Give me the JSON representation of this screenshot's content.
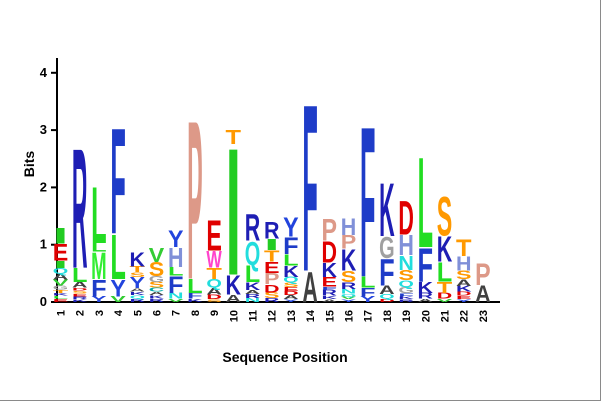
{
  "chart_data": {
    "type": "sequence-logo",
    "title": "",
    "xlabel": "Sequence Position",
    "ylabel": "Bits",
    "ylim": [
      0,
      4.3
    ],
    "yticks": [
      "0",
      "1",
      "2",
      "3",
      "4"
    ],
    "ytick_values": [
      0,
      1,
      2,
      3,
      4
    ],
    "positions": [
      "1",
      "2",
      "3",
      "4",
      "5",
      "6",
      "7",
      "8",
      "9",
      "10",
      "11",
      "12",
      "13",
      "14",
      "15",
      "16",
      "17",
      "18",
      "19",
      "20",
      "21",
      "22",
      "23"
    ],
    "colors": {
      "A": "#404040",
      "C": "#00aaaa",
      "D": "#e00000",
      "E": "#e00000",
      "F": "#1e3cc8",
      "G": "#a0a0a0",
      "H": "#8090d8",
      "I": "#22cc22",
      "K": "#1e1eb4",
      "L": "#22dd22",
      "M": "#33ee33",
      "N": "#22dddd",
      "P": "#dd9988",
      "Q": "#22dddd",
      "R": "#1e1eb4",
      "S": "#ff9900",
      "T": "#ff9900",
      "V": "#33cc33",
      "W": "#ff44cc",
      "Y": "#2244dd"
    },
    "columns": [
      {
        "position": "1",
        "letters": [
          [
            "E",
            0.06
          ],
          [
            "L",
            0.05
          ],
          [
            "K",
            0.05
          ],
          [
            "T",
            0.06
          ],
          [
            "G",
            0.07
          ],
          [
            "V",
            0.1
          ],
          [
            "A",
            0.1
          ],
          [
            "Q",
            0.1
          ],
          [
            "I",
            0.13
          ],
          [
            "E",
            0.3
          ],
          [
            "I",
            0.28
          ]
        ]
      },
      {
        "position": "2",
        "letters": [
          [
            "K",
            0.05
          ],
          [
            "R",
            0.05
          ],
          [
            "E",
            0.05
          ],
          [
            "S",
            0.05
          ],
          [
            "D",
            0.05
          ],
          [
            "A",
            0.1
          ],
          [
            "L",
            0.25
          ],
          [
            "R",
            2.15
          ]
        ]
      },
      {
        "position": "3",
        "letters": [
          [
            "Y",
            0.1
          ],
          [
            "F",
            0.3
          ],
          [
            "M",
            0.48
          ],
          [
            "L",
            0.15
          ],
          [
            "L",
            1.02
          ]
        ]
      },
      {
        "position": "4",
        "letters": [
          [
            "V",
            0.1
          ],
          [
            "Y",
            0.3
          ],
          [
            "L",
            0.8
          ],
          [
            "F",
            1.9
          ]
        ]
      },
      {
        "position": "5",
        "letters": [
          [
            "R",
            0.06
          ],
          [
            "Q",
            0.06
          ],
          [
            "K",
            0.06
          ],
          [
            "A",
            0.06
          ],
          [
            "Y",
            0.2
          ],
          [
            "S",
            0.08
          ],
          [
            "T",
            0.1
          ],
          [
            "K",
            0.25
          ]
        ]
      },
      {
        "position": "6",
        "letters": [
          [
            "R",
            0.06
          ],
          [
            "K",
            0.06
          ],
          [
            "A",
            0.06
          ],
          [
            "C",
            0.07
          ],
          [
            "S",
            0.1
          ],
          [
            "G",
            0.1
          ],
          [
            "S",
            0.25
          ],
          [
            "V",
            0.25
          ]
        ]
      },
      {
        "position": "7",
        "letters": [
          [
            "V",
            0.06
          ],
          [
            "N",
            0.1
          ],
          [
            "F",
            0.3
          ],
          [
            "L",
            0.15
          ],
          [
            "H",
            0.35
          ],
          [
            "Y",
            0.3
          ]
        ]
      },
      {
        "position": "8",
        "letters": [
          [
            "K",
            0.06
          ],
          [
            "F",
            0.1
          ],
          [
            "L",
            0.25
          ],
          [
            "P",
            2.85
          ]
        ]
      },
      {
        "position": "9",
        "letters": [
          [
            "S",
            0.05
          ],
          [
            "D",
            0.08
          ],
          [
            "A",
            0.12
          ],
          [
            "Q",
            0.15
          ],
          [
            "T",
            0.2
          ],
          [
            "W",
            0.3
          ],
          [
            "E",
            0.55
          ]
        ]
      },
      {
        "position": "10",
        "letters": [
          [
            "A",
            0.13
          ],
          [
            "K",
            0.35
          ],
          [
            "I",
            2.28
          ],
          [
            "T",
            0.26
          ]
        ]
      },
      {
        "position": "11",
        "letters": [
          [
            "N",
            0.07
          ],
          [
            "R",
            0.07
          ],
          [
            "A",
            0.07
          ],
          [
            "K",
            0.14
          ],
          [
            "L",
            0.3
          ],
          [
            "Q",
            0.42
          ],
          [
            "R",
            0.48
          ]
        ]
      },
      {
        "position": "12",
        "letters": [
          [
            "R",
            0.07
          ],
          [
            "S",
            0.1
          ],
          [
            "D",
            0.14
          ],
          [
            "P",
            0.2
          ],
          [
            "E",
            0.2
          ],
          [
            "T",
            0.2
          ],
          [
            "I",
            0.2
          ],
          [
            "R",
            0.3
          ]
        ]
      },
      {
        "position": "13",
        "letters": [
          [
            "Y",
            0.05
          ],
          [
            "A",
            0.07
          ],
          [
            "D",
            0.07
          ],
          [
            "E",
            0.07
          ],
          [
            "S",
            0.08
          ],
          [
            "Q",
            0.1
          ],
          [
            "K",
            0.2
          ],
          [
            "L",
            0.2
          ],
          [
            "F",
            0.3
          ],
          [
            "Y",
            0.35
          ]
        ]
      },
      {
        "position": "14",
        "letters": [
          [
            "A",
            0.55
          ],
          [
            "F",
            3.0
          ]
        ]
      },
      {
        "position": "15",
        "letters": [
          [
            "A",
            0.05
          ],
          [
            "K",
            0.06
          ],
          [
            "R",
            0.1
          ],
          [
            "F",
            0.06
          ],
          [
            "E",
            0.17
          ],
          [
            "K",
            0.25
          ],
          [
            "D",
            0.38
          ],
          [
            "P",
            0.4
          ]
        ]
      },
      {
        "position": "16",
        "letters": [
          [
            "Y",
            0.05
          ],
          [
            "V",
            0.05
          ],
          [
            "Q",
            0.05
          ],
          [
            "N",
            0.08
          ],
          [
            "R",
            0.12
          ],
          [
            "S",
            0.2
          ],
          [
            "K",
            0.38
          ],
          [
            "P",
            0.24
          ],
          [
            "H",
            0.3
          ]
        ]
      },
      {
        "position": "17",
        "letters": [
          [
            "Y",
            0.1
          ],
          [
            "F",
            0.15
          ],
          [
            "L",
            0.2
          ],
          [
            "F",
            2.7
          ]
        ]
      },
      {
        "position": "18",
        "letters": [
          [
            "D",
            0.06
          ],
          [
            "Q",
            0.08
          ],
          [
            "A",
            0.15
          ],
          [
            "F",
            0.48
          ],
          [
            "G",
            0.38
          ],
          [
            "K",
            0.96
          ]
        ]
      },
      {
        "position": "19",
        "letters": [
          [
            "R",
            0.05
          ],
          [
            "K",
            0.05
          ],
          [
            "F",
            0.06
          ],
          [
            "G",
            0.1
          ],
          [
            "Q",
            0.12
          ],
          [
            "S",
            0.18
          ],
          [
            "N",
            0.26
          ],
          [
            "H",
            0.36
          ],
          [
            "D",
            0.6
          ]
        ]
      },
      {
        "position": "20",
        "letters": [
          [
            "A",
            0.06
          ],
          [
            "R",
            0.1
          ],
          [
            "K",
            0.2
          ],
          [
            "F",
            0.6
          ],
          [
            "L",
            1.62
          ]
        ]
      },
      {
        "position": "21",
        "letters": [
          [
            "V",
            0.06
          ],
          [
            "D",
            0.1
          ],
          [
            "T",
            0.2
          ],
          [
            "L",
            0.35
          ],
          [
            "K",
            0.45
          ],
          [
            "S",
            0.7
          ]
        ]
      },
      {
        "position": "22",
        "letters": [
          [
            "Y",
            0.05
          ],
          [
            "E",
            0.06
          ],
          [
            "D",
            0.07
          ],
          [
            "K",
            0.1
          ],
          [
            "A",
            0.12
          ],
          [
            "S",
            0.15
          ],
          [
            "H",
            0.25
          ],
          [
            "T",
            0.3
          ]
        ]
      },
      {
        "position": "23",
        "letters": [
          [
            "A",
            0.3
          ],
          [
            "P",
            0.39
          ]
        ]
      }
    ]
  }
}
